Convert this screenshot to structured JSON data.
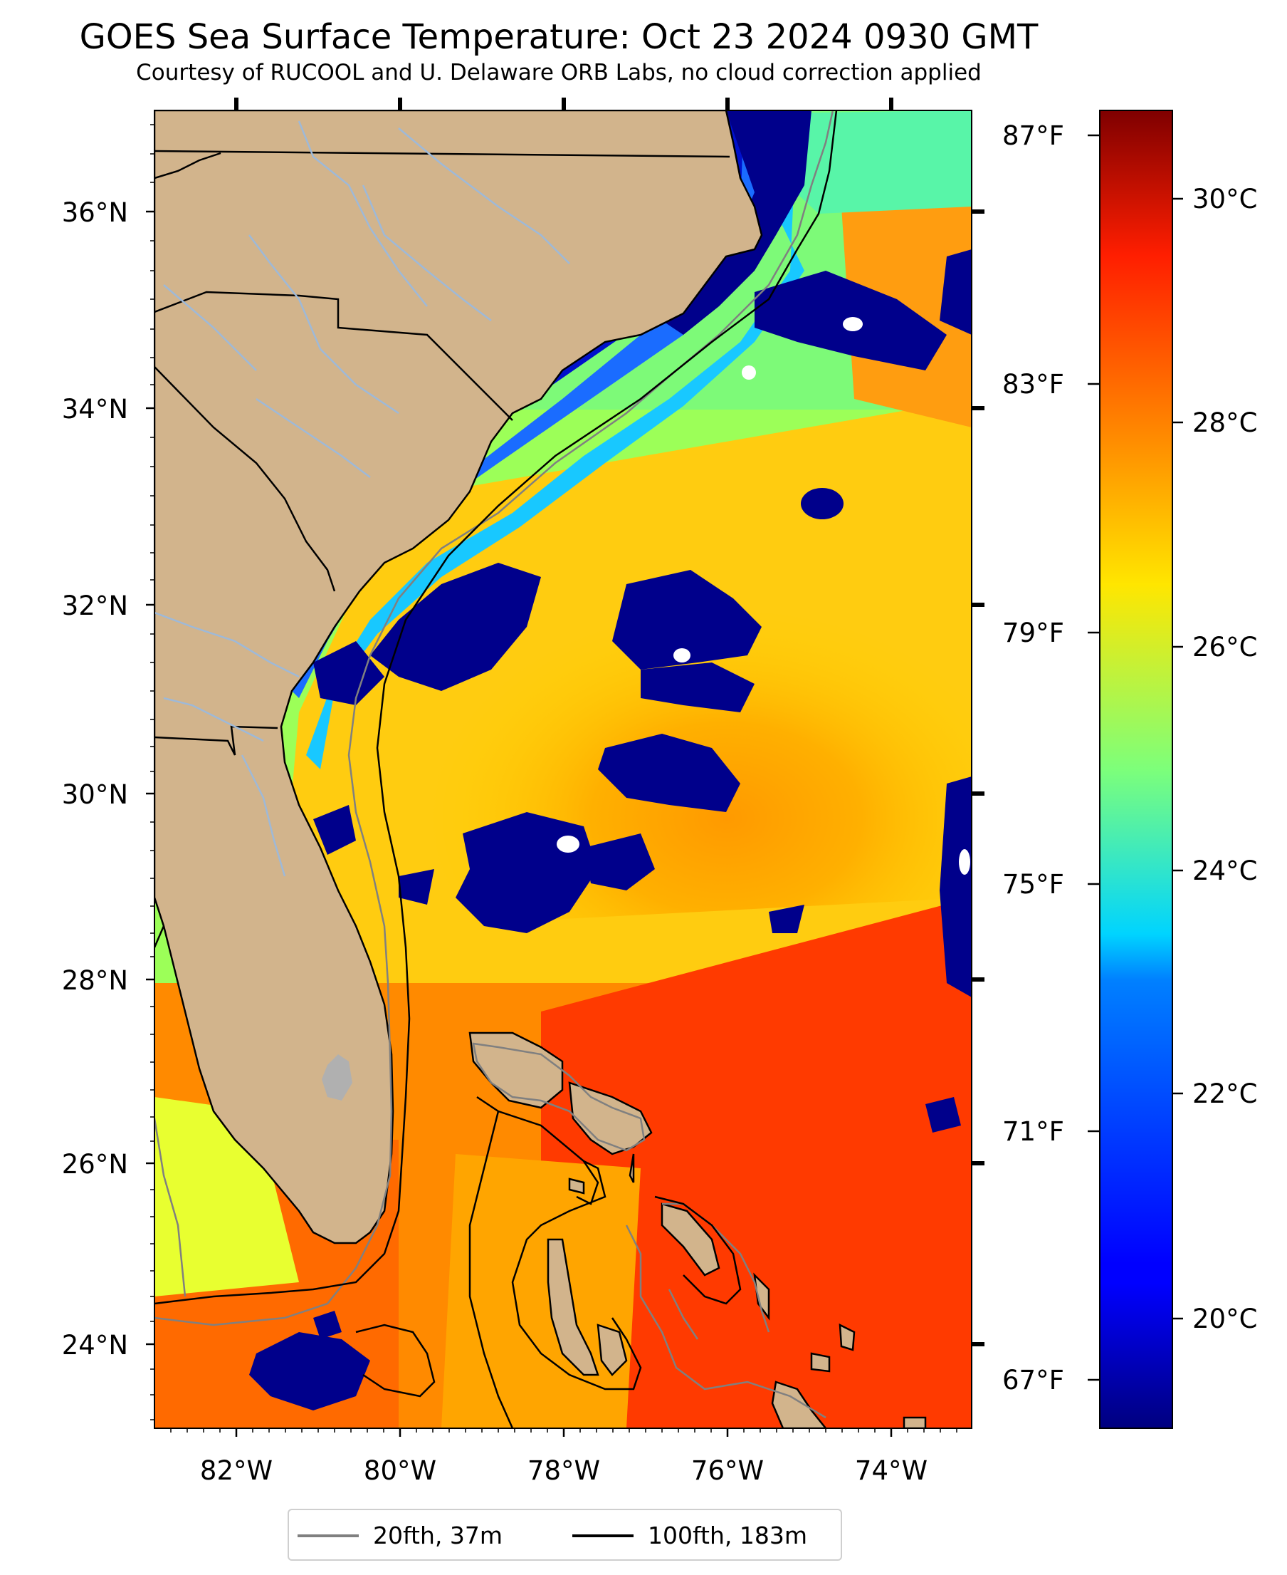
{
  "title": "GOES Sea Surface Temperature: Oct 23 2024 0930 GMT",
  "subtitle": "Courtesy of RUCOOL and U. Delaware ORB Labs, no cloud correction applied",
  "map": {
    "lon_range": [
      -83,
      -73
    ],
    "lat_range": [
      23.1,
      37.0
    ],
    "lat_ticks": [
      "36°N",
      "34°N",
      "32°N",
      "30°N",
      "28°N",
      "26°N",
      "24°N"
    ],
    "lat_tick_values": [
      36,
      34,
      32,
      30,
      28,
      26,
      24
    ],
    "lon_ticks": [
      "82°W",
      "80°W",
      "78°W",
      "76°W",
      "74°W"
    ],
    "lon_tick_values": [
      -82,
      -80,
      -78,
      -76,
      -74
    ],
    "fahrenheit_ticks": [
      "87°F",
      "83°F",
      "79°F",
      "75°F",
      "71°F",
      "67°F"
    ],
    "land_color": "#d2b48c",
    "cloud_color": "#00008b"
  },
  "colorbar": {
    "range_c": [
      18.6,
      30.6
    ],
    "ticks": [
      "30°C",
      "28°C",
      "26°C",
      "24°C",
      "22°C",
      "20°C"
    ],
    "tick_values": [
      30,
      28,
      26,
      24,
      22,
      20
    ],
    "colormap": "jet"
  },
  "legend": {
    "items": [
      {
        "label": "20fth, 37m",
        "color": "#808080"
      },
      {
        "label": "100fth, 183m",
        "color": "#000000"
      }
    ]
  }
}
